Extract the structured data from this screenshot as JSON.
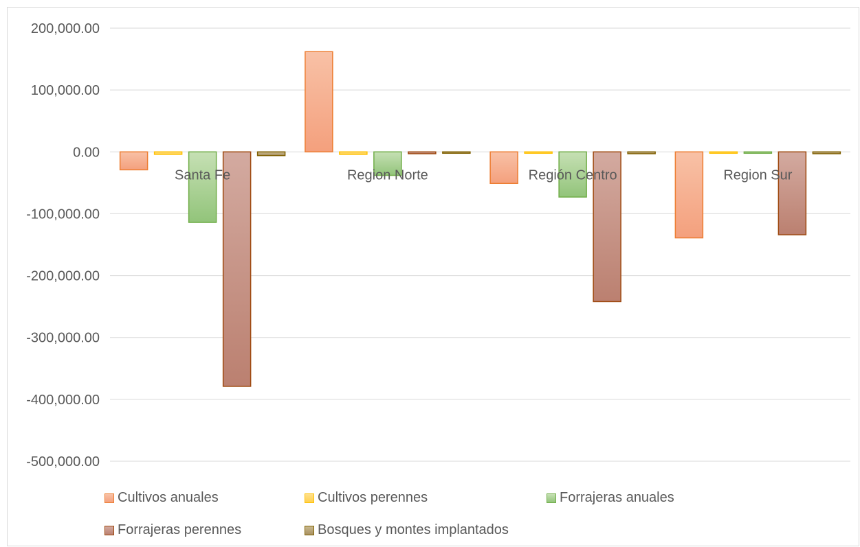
{
  "chart_data": {
    "type": "bar",
    "title": "",
    "xlabel": "",
    "ylabel": "",
    "categories": [
      "Santa Fe",
      "Region Norte",
      "Región Centro",
      "Region Sur"
    ],
    "ylim": [
      -500000,
      200000
    ],
    "yticks": [
      200000,
      100000,
      0,
      -100000,
      -200000,
      -300000,
      -400000,
      -500000
    ],
    "ytick_labels": [
      "200,000.00",
      "100,000.00",
      "0.00",
      "-100,000.00",
      "-200,000.00",
      "-300,000.00",
      "-400,000.00",
      "-500,000.00"
    ],
    "grid": true,
    "legend_position": "bottom",
    "series": [
      {
        "name": "Cultivos anuales",
        "values": [
          -29000,
          162000,
          -51000,
          -139000
        ],
        "fill_top": "#f8c1a6",
        "fill_bottom": "#f4a07d",
        "stroke": "#ed7d31"
      },
      {
        "name": "Cultivos perennes",
        "values": [
          -4000,
          -4000,
          -1500,
          -1000
        ],
        "fill_top": "#ffe08a",
        "fill_bottom": "#ffd04d",
        "stroke": "#ffc000"
      },
      {
        "name": "Forrajeras anuales",
        "values": [
          -114000,
          -38000,
          -73000,
          -2000
        ],
        "fill_top": "#c6e0b4",
        "fill_bottom": "#92c47a",
        "stroke": "#70ad47"
      },
      {
        "name": "Forrajeras perennes",
        "values": [
          -379000,
          -3000,
          -242000,
          -134000
        ],
        "fill_top": "#d3aaa0",
        "fill_bottom": "#bb8070",
        "stroke": "#9e480e"
      },
      {
        "name": "Bosques y montes implantados",
        "values": [
          -6000,
          -1500,
          -3000,
          -3000
        ],
        "fill_top": "#c9b98f",
        "fill_bottom": "#a89060",
        "stroke": "#806000"
      }
    ]
  }
}
